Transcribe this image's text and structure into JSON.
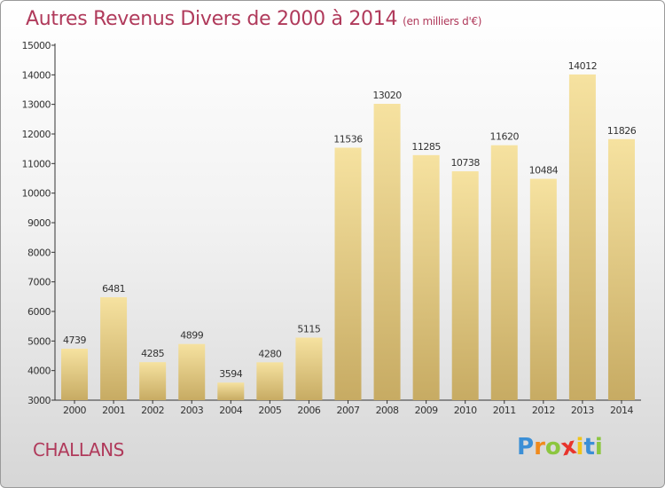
{
  "title": "Autres Revenus Divers de 2000 à 2014",
  "title_unit": "(en milliers d'€)",
  "commune": "CHALLANS",
  "logo": {
    "letters": [
      "P",
      "r",
      "o",
      "x",
      "i",
      "t",
      "i"
    ],
    "colors": [
      "#3b8fd6",
      "#f08a1c",
      "#8cc63f",
      "#e8342c",
      "#f0c419",
      "#3b8fd6",
      "#8cc63f"
    ]
  },
  "colors": {
    "title": "#b03a5b",
    "bar_light": "#f6e2a0",
    "bar_dark": "#c7ab63"
  },
  "chart_data": {
    "type": "bar",
    "categories": [
      "2000",
      "2001",
      "2002",
      "2003",
      "2004",
      "2005",
      "2006",
      "2007",
      "2008",
      "2009",
      "2010",
      "2011",
      "2012",
      "2013",
      "2014"
    ],
    "values": [
      4739,
      6481,
      4285,
      4899,
      3594,
      4280,
      5115,
      11536,
      13020,
      11285,
      10738,
      11620,
      10484,
      14012,
      11826
    ],
    "ylim": [
      3000,
      15000
    ],
    "yticks": [
      3000,
      4000,
      5000,
      6000,
      7000,
      8000,
      9000,
      10000,
      11000,
      12000,
      13000,
      14000,
      15000
    ],
    "grid": false,
    "data_labels": true
  }
}
